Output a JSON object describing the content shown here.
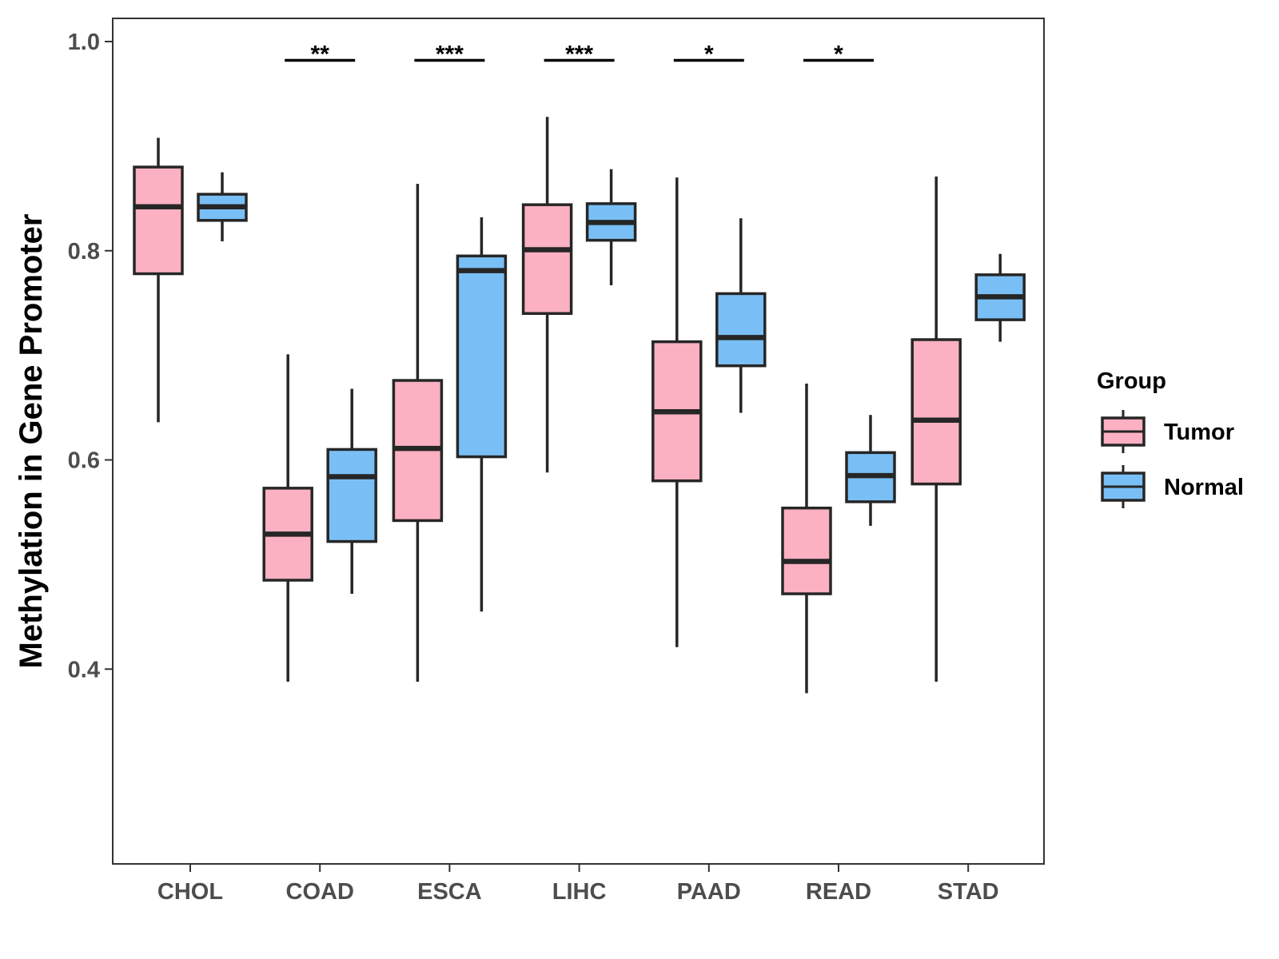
{
  "chart_data": {
    "type": "boxplot",
    "title": "",
    "xlabel": "",
    "ylabel": "Methylation in Gene Promoter",
    "ylim": [
      0.2,
      1.0
    ],
    "yticks": [
      0.4,
      0.6,
      0.8,
      1.0
    ],
    "ytick_labels": [
      "0.4",
      "0.6",
      "0.8",
      "1.0"
    ],
    "categories": [
      "CHOL",
      "COAD",
      "ESCA",
      "LIHC",
      "PAAD",
      "READ",
      "STAD"
    ],
    "legend": {
      "title": "Group",
      "position": "right",
      "items": [
        {
          "name": "Tumor",
          "color": "#fbb1c2"
        },
        {
          "name": "Normal",
          "color": "#79bff5"
        }
      ]
    },
    "series": [
      {
        "name": "Tumor",
        "color": "#fbb1c2",
        "boxes": [
          {
            "category": "CHOL",
            "min": 0.636,
            "q1": 0.778,
            "median": 0.842,
            "q3": 0.88,
            "max": 0.908
          },
          {
            "category": "COAD",
            "min": 0.388,
            "q1": 0.485,
            "median": 0.529,
            "q3": 0.573,
            "max": 0.701
          },
          {
            "category": "ESCA",
            "min": 0.388,
            "q1": 0.542,
            "median": 0.611,
            "q3": 0.676,
            "max": 0.864
          },
          {
            "category": "LIHC",
            "min": 0.588,
            "q1": 0.74,
            "median": 0.801,
            "q3": 0.844,
            "max": 0.928
          },
          {
            "category": "PAAD",
            "min": 0.421,
            "q1": 0.58,
            "median": 0.646,
            "q3": 0.713,
            "max": 0.87
          },
          {
            "category": "READ",
            "min": 0.377,
            "q1": 0.472,
            "median": 0.503,
            "q3": 0.554,
            "max": 0.673
          },
          {
            "category": "STAD",
            "min": 0.388,
            "q1": 0.577,
            "median": 0.638,
            "q3": 0.715,
            "max": 0.871
          }
        ]
      },
      {
        "name": "Normal",
        "color": "#79bff5",
        "boxes": [
          {
            "category": "CHOL",
            "min": 0.809,
            "q1": 0.829,
            "median": 0.842,
            "q3": 0.854,
            "max": 0.875
          },
          {
            "category": "COAD",
            "min": 0.472,
            "q1": 0.522,
            "median": 0.584,
            "q3": 0.61,
            "max": 0.668
          },
          {
            "category": "ESCA",
            "min": 0.455,
            "q1": 0.603,
            "median": 0.781,
            "q3": 0.795,
            "max": 0.832
          },
          {
            "category": "LIHC",
            "min": 0.767,
            "q1": 0.81,
            "median": 0.827,
            "q3": 0.845,
            "max": 0.878
          },
          {
            "category": "PAAD",
            "min": 0.645,
            "q1": 0.69,
            "median": 0.717,
            "q3": 0.759,
            "max": 0.831
          },
          {
            "category": "READ",
            "min": 0.537,
            "q1": 0.56,
            "median": 0.585,
            "q3": 0.607,
            "max": 0.643
          },
          {
            "category": "STAD",
            "min": 0.713,
            "q1": 0.734,
            "median": 0.756,
            "q3": 0.777,
            "max": 0.797
          }
        ]
      }
    ],
    "significance": [
      {
        "category": "COAD",
        "label": "**",
        "y": 0.982
      },
      {
        "category": "ESCA",
        "label": "***",
        "y": 0.982
      },
      {
        "category": "LIHC",
        "label": "***",
        "y": 0.982
      },
      {
        "category": "PAAD",
        "label": "*",
        "y": 0.982
      },
      {
        "category": "READ",
        "label": "*",
        "y": 0.982
      }
    ],
    "colors": {
      "outline": "#262626",
      "axis": "#333333",
      "tick_text": "#4d4d4d"
    }
  }
}
